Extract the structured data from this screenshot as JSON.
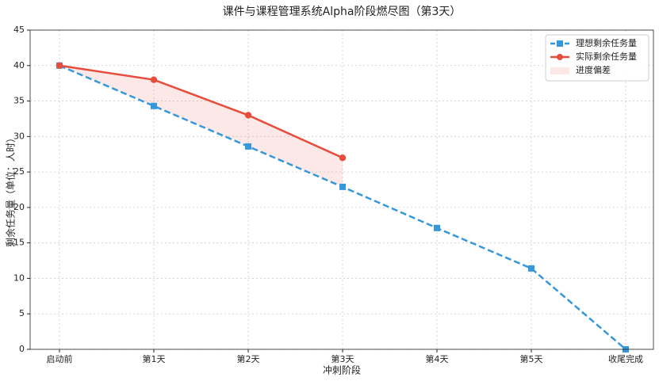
{
  "chart_data": {
    "type": "line",
    "title": "课件与课程管理系统Alpha阶段燃尽图（第3天）",
    "x_label": "冲刺阶段",
    "y_label": "剩余任务量（单位：人时）",
    "categories": [
      "启动前",
      "第1天",
      "第2天",
      "第3天",
      "第4天",
      "第5天",
      "收尾完成"
    ],
    "series": [
      {
        "name": "理想剩余任务量",
        "color": "#3498db",
        "marker": "square",
        "dashed": true,
        "values": [
          40,
          34.3,
          28.6,
          22.9,
          17.1,
          11.4,
          0
        ]
      },
      {
        "name": "实际剩余任务量",
        "color": "#e74c3c",
        "marker": "circle",
        "dashed": false,
        "values": [
          40,
          38,
          33,
          27,
          null,
          null,
          null
        ]
      }
    ],
    "fill": {
      "name": "进度偏差",
      "color": "#e74c3c"
    },
    "ylim": [
      0,
      45
    ],
    "yticks": [
      0,
      5,
      10,
      15,
      20,
      25,
      30,
      35,
      40,
      45
    ],
    "grid": true,
    "legend": "upper right"
  }
}
